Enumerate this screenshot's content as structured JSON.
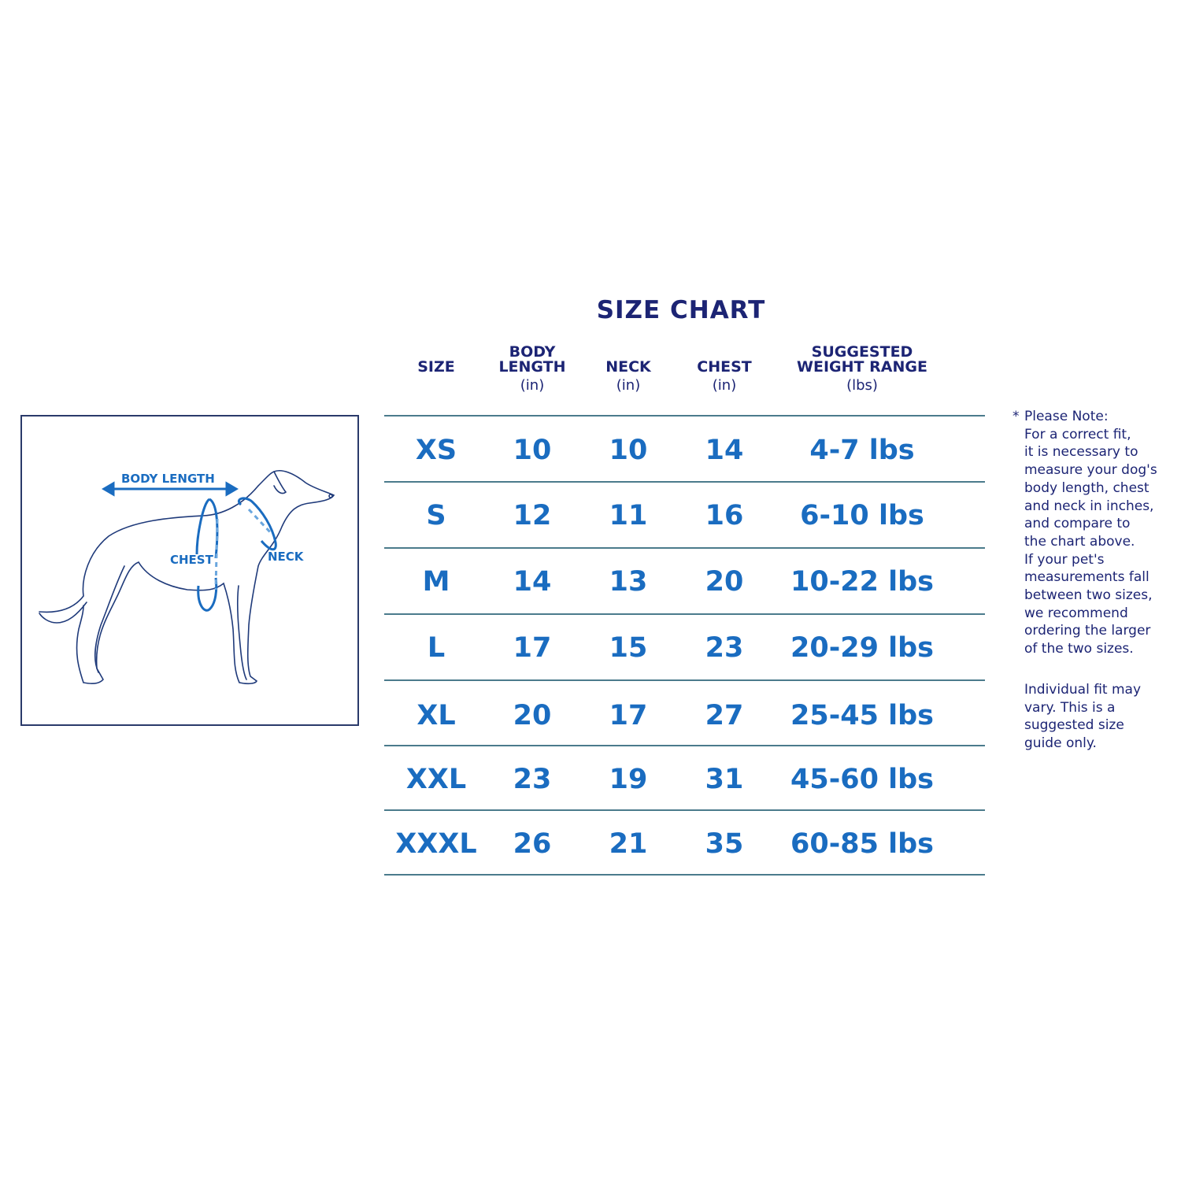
{
  "title": "SIZE  CHART",
  "headers": [
    {
      "label_lines": [
        "SIZE"
      ],
      "unit": ""
    },
    {
      "label_lines": [
        "BODY",
        "LENGTH"
      ],
      "unit": "(in)"
    },
    {
      "label_lines": [
        "NECK"
      ],
      "unit": "(in)"
    },
    {
      "label_lines": [
        "CHEST"
      ],
      "unit": "(in)"
    },
    {
      "label_lines": [
        "SUGGESTED",
        "WEIGHT RANGE"
      ],
      "unit": "(lbs)"
    }
  ],
  "rows": [
    [
      "XS",
      "10",
      "10",
      "14",
      "4-7 lbs"
    ],
    [
      "S",
      "12",
      "11",
      "16",
      "6-10 lbs"
    ],
    [
      "M",
      "14",
      "13",
      "20",
      "10-22 lbs"
    ],
    [
      "L",
      "17",
      "15",
      "23",
      "20-29 lbs"
    ],
    [
      "XL",
      "20",
      "17",
      "27",
      "25-45 lbs"
    ],
    [
      "XXL",
      "23",
      "19",
      "31",
      "45-60 lbs"
    ],
    [
      "XXXL",
      "26",
      "21",
      "35",
      "60-85 lbs"
    ]
  ],
  "diagram": {
    "body_length": "BODY LENGTH",
    "chest": "CHEST",
    "neck": "NECK"
  },
  "note": {
    "star": "*",
    "lines": [
      "Please Note:",
      "For a correct fit,",
      "it is necessary to",
      "measure your dog's",
      "body length, chest",
      "and neck in inches,",
      "and compare to",
      "the chart above.",
      "If your pet's",
      "measurements fall",
      "between two sizes,",
      "we recommend",
      "ordering the larger",
      "of the two sizes."
    ],
    "disclaimer_lines": [
      "Individual fit may",
      "vary. This is a",
      "suggested size",
      "guide only."
    ]
  },
  "colors": {
    "navy": "#1c2474",
    "blue": "#1a6cc0",
    "rule": "#4b7b8c"
  }
}
